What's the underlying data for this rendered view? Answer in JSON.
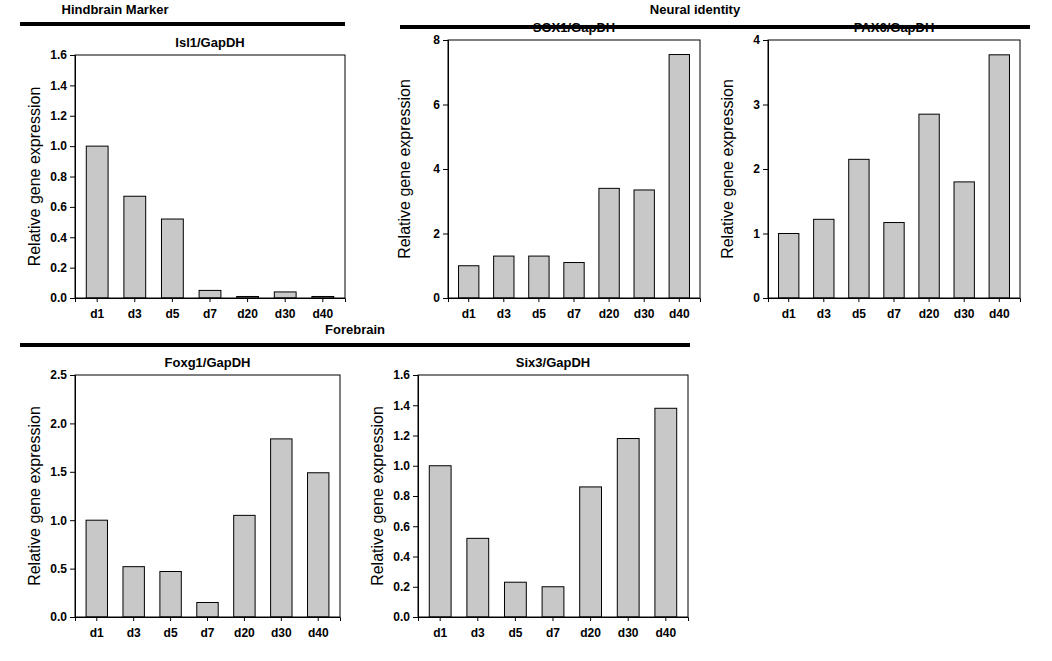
{
  "sections": [
    {
      "title": "Hindbrain Marker"
    },
    {
      "title": "Neural identity"
    },
    {
      "title": "Forebrain"
    }
  ],
  "chart_data": [
    {
      "type": "bar",
      "title": "Isl1/GapDH",
      "y_label": "Relative gene expression",
      "categories": [
        "d1",
        "d3",
        "d5",
        "d7",
        "d20",
        "d30",
        "d40"
      ],
      "values": [
        1.0,
        0.67,
        0.52,
        0.05,
        0.01,
        0.04,
        0.01
      ],
      "color": "#c8c8c8",
      "ylim": [
        0,
        1.6
      ],
      "yticks": [
        {
          "value": 0,
          "label": "0.0"
        },
        0.2,
        0.4,
        0.6,
        0.8,
        {
          "value": 1,
          "label": "1.0"
        },
        1.2,
        1.4,
        1.6
      ]
    },
    {
      "type": "bar",
      "title": "SOX1/GapDH",
      "y_label": "Relative gene expression",
      "categories": [
        "d1",
        "d3",
        "d5",
        "d7",
        "d20",
        "d30",
        "d40"
      ],
      "values": [
        1.0,
        1.3,
        1.3,
        1.1,
        3.4,
        3.35,
        7.55
      ],
      "color": "#c8c8c8",
      "ylim": [
        0,
        8
      ],
      "yticks": [
        0,
        2,
        4,
        6,
        8
      ]
    },
    {
      "type": "bar",
      "title": "PAX6/GapDH",
      "y_label": "Relative gene expression",
      "categories": [
        "d1",
        "d3",
        "d5",
        "d7",
        "d20",
        "d30",
        "d40"
      ],
      "values": [
        1.0,
        1.22,
        2.15,
        1.17,
        2.85,
        1.8,
        3.77
      ],
      "color": "#c8c8c8",
      "ylim": [
        0,
        4
      ],
      "yticks": [
        0,
        1,
        2,
        3,
        4
      ]
    },
    {
      "type": "bar",
      "title": "Foxg1/GapDH",
      "y_label": "Relative gene expression",
      "categories": [
        "d1",
        "d3",
        "d5",
        "d7",
        "d20",
        "d30",
        "d40"
      ],
      "values": [
        1.0,
        0.52,
        0.47,
        0.15,
        1.05,
        1.84,
        1.49
      ],
      "color": "#c8c8c8",
      "ylim": [
        0,
        2.5
      ],
      "yticks": [
        {
          "value": 0,
          "label": "0.0"
        },
        0.5,
        {
          "value": 1,
          "label": "1.0"
        },
        1.5,
        {
          "value": 2,
          "label": "2.0"
        },
        2.5
      ]
    },
    {
      "type": "bar",
      "title": "Six3/GapDH",
      "y_label": "Relative gene expression",
      "categories": [
        "d1",
        "d3",
        "d5",
        "d7",
        "d20",
        "d30",
        "d40"
      ],
      "values": [
        1.0,
        0.52,
        0.23,
        0.2,
        0.86,
        1.18,
        1.38
      ],
      "color": "#c8c8c8",
      "ylim": [
        0,
        1.6
      ],
      "yticks": [
        {
          "value": 0,
          "label": "0.0"
        },
        0.2,
        0.4,
        0.6,
        0.8,
        {
          "value": 1,
          "label": "1.0"
        },
        1.2,
        1.4,
        1.6
      ]
    }
  ]
}
